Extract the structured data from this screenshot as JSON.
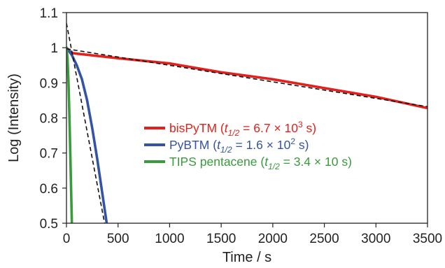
{
  "chart_data": {
    "type": "line",
    "title": "",
    "xlabel": "Time / s",
    "ylabel": "Log  (Intensity)",
    "xlim": [
      0,
      3500
    ],
    "ylim": [
      0.5,
      1.1
    ],
    "xticks": [
      0,
      500,
      1000,
      1500,
      2000,
      2500,
      3000,
      3500
    ],
    "yticks": [
      0.5,
      0.6,
      0.7,
      0.8,
      0.9,
      1,
      1.1
    ],
    "grid": false,
    "legend": "center-right",
    "series": [
      {
        "key": "bispytm",
        "name": "bisPyTM",
        "half_life": {
          "base": "6.7 × 10",
          "exp": "3",
          "unit": " s"
        },
        "color": "#e3211c",
        "x": [
          0,
          50,
          100,
          500,
          1000,
          1500,
          2000,
          2500,
          3000,
          3500
        ],
        "y": [
          1.0,
          0.985,
          0.983,
          0.97,
          0.955,
          0.93,
          0.91,
          0.885,
          0.86,
          0.828
        ]
      },
      {
        "key": "pybtm",
        "name": "PyBTM",
        "half_life": {
          "base": "1.6 × 10",
          "exp": "2",
          "unit": " s"
        },
        "color": "#3453a4",
        "x": [
          0,
          50,
          100,
          150,
          200,
          250,
          300,
          350,
          390
        ],
        "y": [
          1.0,
          0.98,
          0.95,
          0.91,
          0.85,
          0.77,
          0.68,
          0.58,
          0.5
        ]
      },
      {
        "key": "tips",
        "name": "TIPS pentacene",
        "half_life": {
          "base": "3.4 × 10",
          "exp": "",
          "unit": " s"
        },
        "color": "#3a9a3e",
        "x": [
          0,
          10,
          20,
          30,
          40,
          52
        ],
        "y": [
          1.0,
          0.97,
          0.9,
          0.79,
          0.66,
          0.5
        ]
      }
    ],
    "fits": [
      {
        "x": [
          0,
          3500
        ],
        "y": [
          0.997,
          0.832
        ]
      },
      {
        "x": [
          0,
          370
        ],
        "y": [
          1.07,
          0.5
        ]
      }
    ]
  }
}
